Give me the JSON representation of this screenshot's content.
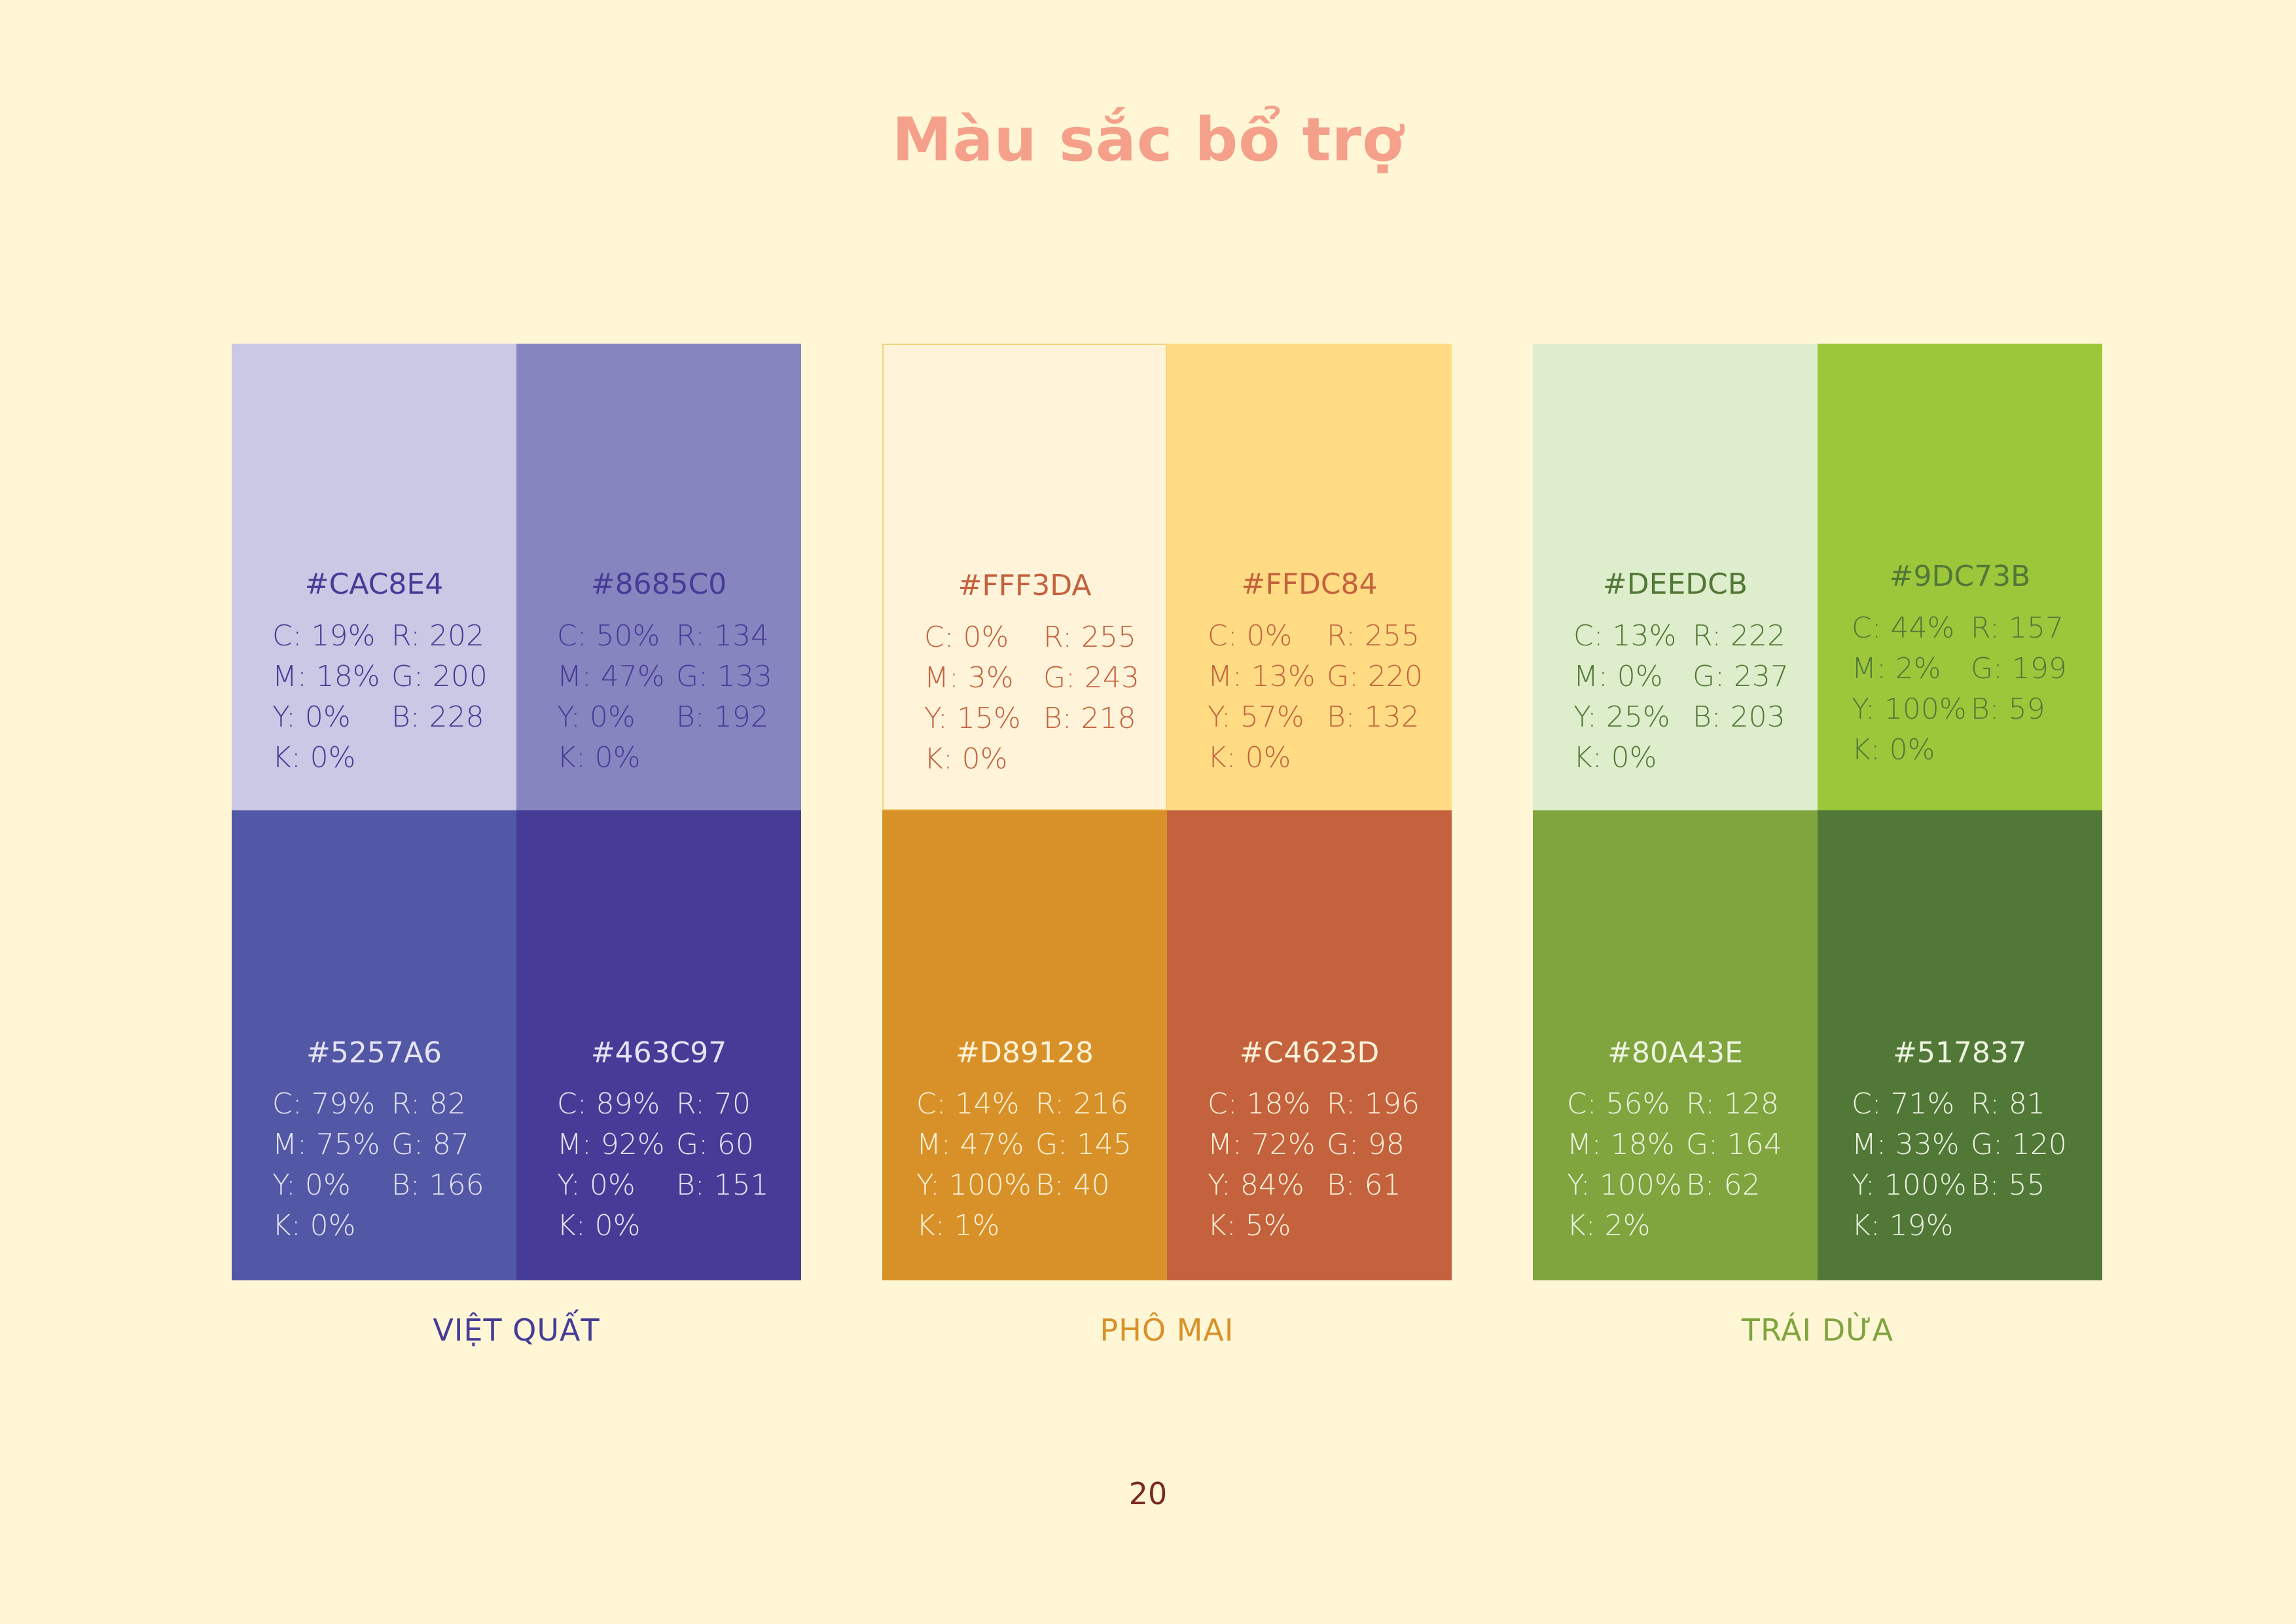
{
  "title": "Màu sắc bổ trợ",
  "page_number": "20",
  "groups": [
    {
      "label": "VIỆT QUẤT",
      "label_color": "#463C97",
      "swatches": [
        {
          "hex": "#CAC8E4",
          "bg": "#CAC8E4",
          "text_color": "#463C97",
          "c": "C: 19%",
          "m": "M: 18%",
          "y": "Y: 0%",
          "k": "K: 0%",
          "r": "R: 202",
          "g": "G: 200",
          "b": "B: 228"
        },
        {
          "hex": "#8685C0",
          "bg": "#8685C0",
          "text_color": "#463C97",
          "c": "C: 50%",
          "m": "M: 47%",
          "y": "Y: 0%",
          "k": "K: 0%",
          "r": "R: 134",
          "g": "G: 133",
          "b": "B: 192"
        },
        {
          "hex": "#5257A6",
          "bg": "#5257A6",
          "text_color": "#E6E4F4",
          "c": "C: 79%",
          "m": "M: 75%",
          "y": "Y: 0%",
          "k": "K: 0%",
          "r": "R: 82",
          "g": "G: 87",
          "b": "B: 166"
        },
        {
          "hex": "#463C97",
          "bg": "#463C97",
          "text_color": "#E6E4F4",
          "c": "C: 89%",
          "m": "M: 92%",
          "y": "Y: 0%",
          "k": "K: 0%",
          "r": "R: 70",
          "g": "G: 60",
          "b": "B: 151"
        }
      ]
    },
    {
      "label": "PHÔ MAI",
      "label_color": "#D89128",
      "swatches": [
        {
          "hex": "#FFF3DA",
          "bg": "#FFF3DA",
          "text_color": "#C4623D",
          "c": "C: 0%",
          "m": "M: 3%",
          "y": "Y: 15%",
          "k": "K: 0%",
          "r": "R: 255",
          "g": "G: 243",
          "b": "B: 218"
        },
        {
          "hex": "#FFDC84",
          "bg": "#FFDC84",
          "text_color": "#C4623D",
          "c": "C: 0%",
          "m": "M: 13%",
          "y": "Y: 57%",
          "k": "K: 0%",
          "r": "R: 255",
          "g": "G: 220",
          "b": "B: 132"
        },
        {
          "hex": "#D89128",
          "bg": "#D89128",
          "text_color": "#FFF3DA",
          "c": "C: 14%",
          "m": "M: 47%",
          "y": "Y: 100%",
          "k": "K: 1%",
          "r": "R: 216",
          "g": "G: 145",
          "b": "B: 40"
        },
        {
          "hex": "#C4623D",
          "bg": "#C4623D",
          "text_color": "#FFF3DA",
          "c": "C: 18%",
          "m": "M: 72%",
          "y": "Y: 84%",
          "k": "K: 5%",
          "r": "R: 196",
          "g": "G: 98",
          "b": "B: 61"
        }
      ]
    },
    {
      "label": "TRÁI DỪA",
      "label_color": "#80A43E",
      "swatches": [
        {
          "hex": "#DEEDCB",
          "bg": "#DEEDCB",
          "text_color": "#517837",
          "c": "C: 13%",
          "m": "M: 0%",
          "y": "Y: 25%",
          "k": "K: 0%",
          "r": "R: 222",
          "g": "G: 237",
          "b": "B: 203"
        },
        {
          "hex": "#9DC73B",
          "bg": "#9DC73B",
          "text_color": "#517837",
          "c": "C: 44%",
          "m": "M: 2%",
          "y": "Y: 100%",
          "k": "K: 0%",
          "r": "R: 157",
          "g": "G: 199",
          "b": "B: 59"
        },
        {
          "hex": "#80A43E",
          "bg": "#80A43E",
          "text_color": "#EEF5E2",
          "c": "C: 56%",
          "m": "M: 18%",
          "y": "Y: 100%",
          "k": "K: 2%",
          "r": "R: 128",
          "g": "G: 164",
          "b": "B: 62"
        },
        {
          "hex": "#517837",
          "bg": "#517837",
          "text_color": "#EEF5E2",
          "c": "C: 71%",
          "m": "M: 33%",
          "y": "Y: 100%",
          "k": "K: 19%",
          "r": "R: 81",
          "g": "G: 120",
          "b": "B: 55"
        }
      ]
    }
  ]
}
